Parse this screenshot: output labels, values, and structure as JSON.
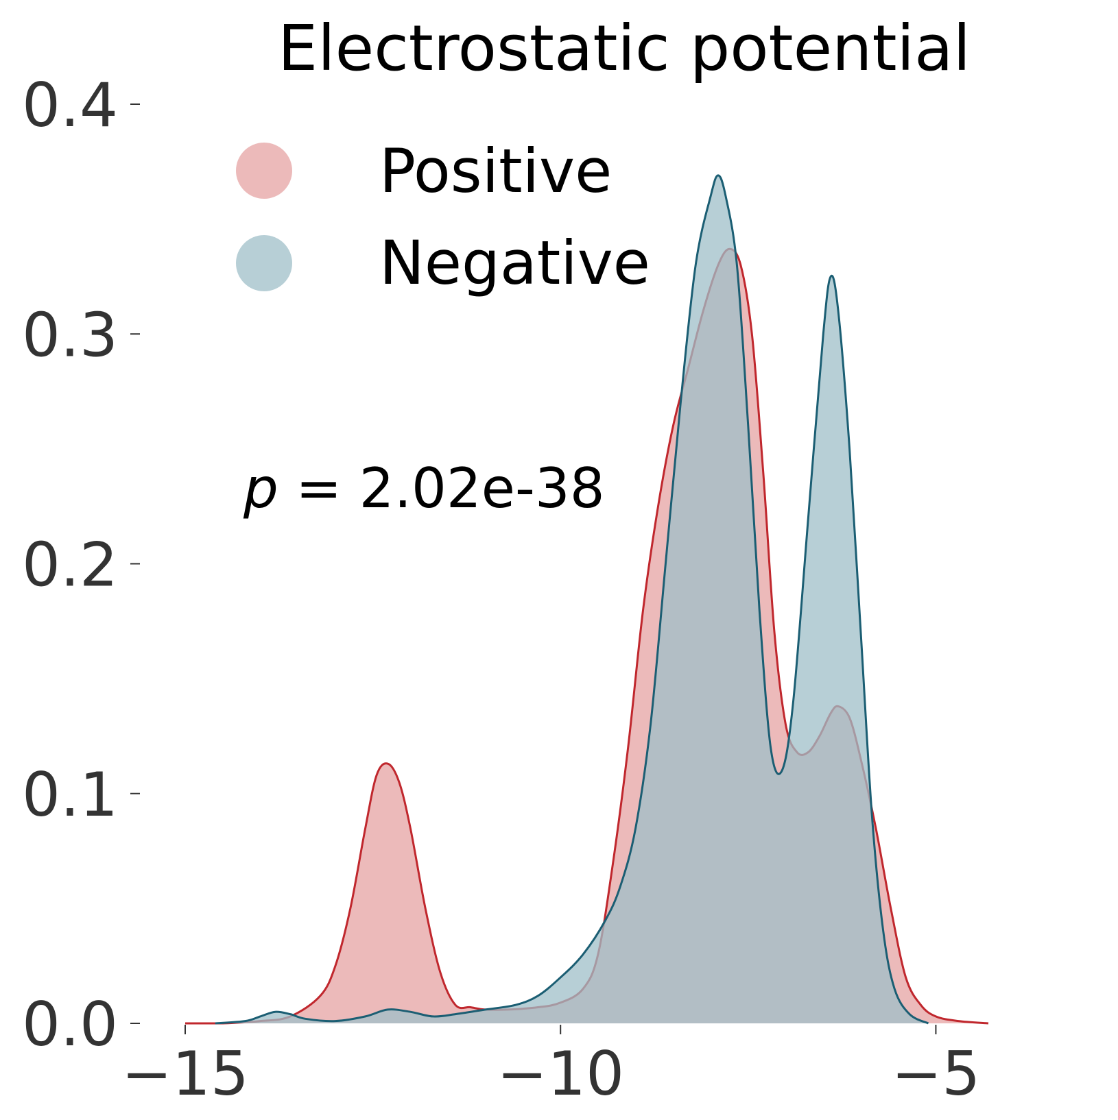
{
  "chart_data": {
    "type": "area",
    "title": "Electrostatic potential",
    "xlabel": "",
    "ylabel": "",
    "xlim": [
      -15,
      -3.35
    ],
    "ylim": [
      0,
      0.4
    ],
    "x_ticks": [
      -15,
      -10,
      -5
    ],
    "x_tick_labels": [
      "−15",
      "−10",
      "−5"
    ],
    "y_ticks": [
      0.0,
      0.1,
      0.2,
      0.3,
      0.4
    ],
    "y_tick_labels": [
      "0.0",
      "0.1",
      "0.2",
      "0.3",
      "0.4"
    ],
    "grid": false,
    "legend_position": "upper-left",
    "annotation": {
      "prefix": "p",
      "text": " = 2.02e-38"
    },
    "series": [
      {
        "name": "Positive",
        "line_color": "#c0272d",
        "fill_color": "#e6a3a3",
        "fill_opacity": 0.75,
        "points": [
          [
            -15.0,
            0.0
          ],
          [
            -14.5,
            0.0
          ],
          [
            -14.0,
            0.001
          ],
          [
            -13.6,
            0.003
          ],
          [
            -13.2,
            0.012
          ],
          [
            -13.0,
            0.025
          ],
          [
            -12.8,
            0.05
          ],
          [
            -12.6,
            0.085
          ],
          [
            -12.45,
            0.108
          ],
          [
            -12.3,
            0.113
          ],
          [
            -12.15,
            0.105
          ],
          [
            -12.0,
            0.085
          ],
          [
            -11.8,
            0.05
          ],
          [
            -11.6,
            0.022
          ],
          [
            -11.4,
            0.008
          ],
          [
            -11.2,
            0.007
          ],
          [
            -11.0,
            0.006
          ],
          [
            -10.7,
            0.006
          ],
          [
            -10.3,
            0.007
          ],
          [
            -10.0,
            0.009
          ],
          [
            -9.7,
            0.015
          ],
          [
            -9.5,
            0.03
          ],
          [
            -9.3,
            0.07
          ],
          [
            -9.1,
            0.12
          ],
          [
            -8.9,
            0.18
          ],
          [
            -8.7,
            0.225
          ],
          [
            -8.5,
            0.26
          ],
          [
            -8.3,
            0.285
          ],
          [
            -8.1,
            0.31
          ],
          [
            -7.9,
            0.33
          ],
          [
            -7.75,
            0.337
          ],
          [
            -7.6,
            0.33
          ],
          [
            -7.45,
            0.3
          ],
          [
            -7.3,
            0.24
          ],
          [
            -7.15,
            0.17
          ],
          [
            -7.0,
            0.13
          ],
          [
            -6.85,
            0.118
          ],
          [
            -6.7,
            0.118
          ],
          [
            -6.55,
            0.125
          ],
          [
            -6.4,
            0.135
          ],
          [
            -6.3,
            0.138
          ],
          [
            -6.15,
            0.133
          ],
          [
            -6.0,
            0.115
          ],
          [
            -5.8,
            0.085
          ],
          [
            -5.6,
            0.05
          ],
          [
            -5.4,
            0.02
          ],
          [
            -5.2,
            0.008
          ],
          [
            -5.0,
            0.003
          ],
          [
            -4.7,
            0.001
          ],
          [
            -4.3,
            0.0
          ]
        ]
      },
      {
        "name": "Negative",
        "line_color": "#1b5e73",
        "fill_color": "#9fbfc8",
        "fill_opacity": 0.75,
        "points": [
          [
            -14.6,
            0.0
          ],
          [
            -14.2,
            0.001
          ],
          [
            -14.0,
            0.003
          ],
          [
            -13.8,
            0.005
          ],
          [
            -13.6,
            0.004
          ],
          [
            -13.4,
            0.002
          ],
          [
            -13.0,
            0.001
          ],
          [
            -12.6,
            0.003
          ],
          [
            -12.3,
            0.006
          ],
          [
            -12.0,
            0.005
          ],
          [
            -11.7,
            0.003
          ],
          [
            -11.4,
            0.004
          ],
          [
            -11.0,
            0.006
          ],
          [
            -10.6,
            0.008
          ],
          [
            -10.3,
            0.012
          ],
          [
            -10.0,
            0.02
          ],
          [
            -9.7,
            0.03
          ],
          [
            -9.4,
            0.045
          ],
          [
            -9.2,
            0.06
          ],
          [
            -9.0,
            0.085
          ],
          [
            -8.8,
            0.13
          ],
          [
            -8.6,
            0.2
          ],
          [
            -8.4,
            0.27
          ],
          [
            -8.2,
            0.33
          ],
          [
            -8.0,
            0.36
          ],
          [
            -7.9,
            0.369
          ],
          [
            -7.8,
            0.36
          ],
          [
            -7.65,
            0.33
          ],
          [
            -7.5,
            0.26
          ],
          [
            -7.35,
            0.18
          ],
          [
            -7.2,
            0.12
          ],
          [
            -7.05,
            0.11
          ],
          [
            -6.9,
            0.14
          ],
          [
            -6.7,
            0.22
          ],
          [
            -6.5,
            0.3
          ],
          [
            -6.4,
            0.325
          ],
          [
            -6.3,
            0.31
          ],
          [
            -6.15,
            0.25
          ],
          [
            -6.0,
            0.17
          ],
          [
            -5.85,
            0.09
          ],
          [
            -5.7,
            0.04
          ],
          [
            -5.55,
            0.015
          ],
          [
            -5.35,
            0.004
          ],
          [
            -5.1,
            0.0
          ]
        ]
      }
    ]
  }
}
